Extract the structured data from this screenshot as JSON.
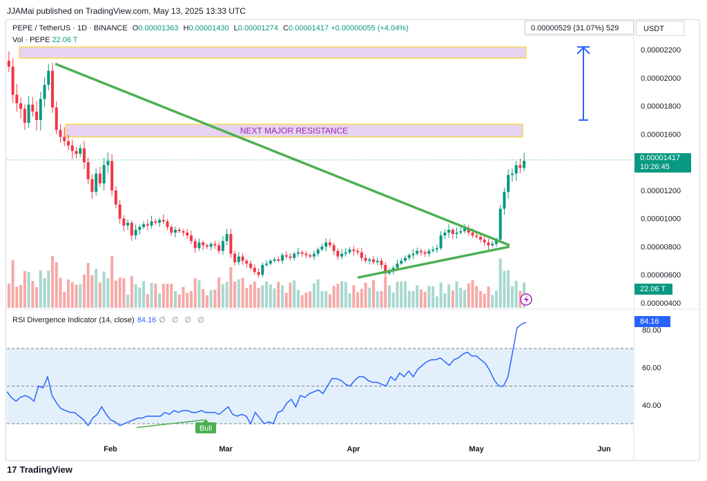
{
  "published_by": "JJAMai published on TradingView.com, May 13, 2025 13:33 UTC",
  "symbol": {
    "title": "PEPE / TetherUS · 1D · BINANCE",
    "ohlc": {
      "o_label": "O",
      "o": "0.00001363",
      "h_label": "H",
      "h": "0.00001430",
      "l_label": "L",
      "l": "0.00001274",
      "c_label": "C",
      "c": "0.00001417",
      "change": "+0.00000055 (+4.04%)"
    },
    "vol_label": "Vol · PEPE",
    "vol_value": "22.06 T",
    "currency": "USDT",
    "last_price": "0.00001417",
    "countdown": "10:26:45",
    "vol_tag": "22.06 T"
  },
  "measure_box": "0.00000529 (31.07%) 529",
  "annotations": {
    "resistance_label": "NEXT MAJOR RESISTANCE",
    "bull_label": "Bull"
  },
  "rsi": {
    "label": "RSI Divergence Indicator (14, close)",
    "value": "84.16",
    "tag": "84.16",
    "icons": "∅ ∅ ∅ ∅"
  },
  "footer": {
    "brand": "TradingView",
    "logo_glyph": "17"
  },
  "colors": {
    "up": "#089981",
    "down": "#f23645",
    "vol_up": "#a7d8cf",
    "vol_down": "#f7a9a7",
    "trendline": "#4caf50",
    "zone_fill": "#e7d3f1",
    "zone_border": "#f5d94e",
    "zone_text": "#9c27b0",
    "rsi_line": "#2962ff",
    "rsi_band": "#e3f0fb",
    "arrow": "#2962ff"
  },
  "chart_data": {
    "type": "candlestick",
    "price_axis": {
      "ticks": [
        4e-06,
        6e-06,
        8e-06,
        1e-05,
        1.2e-05,
        1.6e-05,
        1.8e-05,
        2e-05,
        2.2e-05
      ],
      "tick_labels": [
        "0.00000400",
        "0.00000600",
        "0.00000800",
        "0.00001000",
        "0.00001200",
        "0.00001600",
        "0.00001800",
        "0.00002000",
        "0.00002200"
      ]
    },
    "time_axis": {
      "labels": [
        "Feb",
        "Mar",
        "Apr",
        "May",
        "Jun"
      ]
    },
    "rsi_axis": {
      "ticks": [
        40,
        60,
        80
      ],
      "tick_labels": [
        "40.00",
        "60.00",
        "80.00"
      ],
      "band": [
        30,
        70
      ],
      "midline": 50
    },
    "candle_closes_approx": [
      2.08e-05,
      1.88e-05,
      1.82e-05,
      1.78e-05,
      1.68e-05,
      1.81e-05,
      1.76e-05,
      1.7e-05,
      1.85e-05,
      1.95e-05,
      2.05e-05,
      1.79e-05,
      1.63e-05,
      1.58e-05,
      1.55e-05,
      1.52e-05,
      1.48e-05,
      1.46e-05,
      1.5e-05,
      1.4e-05,
      1.28e-05,
      1.19e-05,
      1.32e-05,
      1.25e-05,
      1.38e-05,
      1.41e-05,
      1.2e-05,
      1.1e-05,
      1e-05,
      9.5e-06,
      9.7e-06,
      8.8e-06,
      9.2e-06,
      9.4e-06,
      9.6e-06,
      9.5e-06,
      9.8e-06,
      9.7e-06,
      9.9e-06,
      9.8e-06,
      9.4e-06,
      9e-06,
      9.2e-06,
      9.1e-06,
      9e-06,
      8.8e-06,
      8.4e-06,
      7.9e-06,
      8.3e-06,
      8.1e-06,
      8e-06,
      8.2e-06,
      8.1e-06,
      7.7e-06,
      8.4e-06,
      8.9e-06,
      7.5e-06,
      6.9e-06,
      7.3e-06,
      7e-06,
      6.8e-06,
      6.5e-06,
      6.2e-06,
      6e-06,
      6.7e-06,
      6.8e-06,
      7e-06,
      7.1e-06,
      7e-06,
      7.4e-06,
      7.3e-06,
      7.2e-06,
      7.5e-06,
      7.6e-06,
      7.5e-06,
      7.4e-06,
      7.3e-06,
      7.5e-06,
      7.8e-06,
      8e-06,
      8.3e-06,
      8.1e-06,
      7.7e-06,
      7.3e-06,
      7.5e-06,
      7.6e-06,
      7.8e-06,
      7.7e-06,
      7.6e-06,
      7.2e-06,
      7e-06,
      7.1e-06,
      6.9e-06,
      7e-06,
      6.7e-06,
      6.1e-06,
      6.3e-06,
      6.5e-06,
      6.8e-06,
      7e-06,
      7.2e-06,
      7.4e-06,
      7.5e-06,
      7.7e-06,
      7.6e-06,
      7.5e-06,
      7.7e-06,
      7.8e-06,
      7.9e-06,
      8.8e-06,
      9e-06,
      9.2e-06,
      8.9e-06,
      9e-06,
      9.1e-06,
      9.3e-06,
      9e-06,
      8.8e-06,
      8.7e-06,
      8.5e-06,
      8.3e-06,
      8.1e-06,
      8.2e-06,
      8.5e-06,
      1.07e-05,
      1.19e-05,
      1.31e-05,
      1.32e-05,
      1.38e-05,
      1.36e-05,
      1.41e-05
    ],
    "resistance_zones": [
      {
        "label": "",
        "low": 2.14e-05,
        "high": 2.22e-05
      },
      {
        "label": "NEXT MAJOR RESISTANCE",
        "low": 1.58e-05,
        "high": 1.67e-05
      }
    ],
    "trendlines": [
      {
        "from": [
          2.1e-05,
          "Jan 17"
        ],
        "to": [
          8.1e-06,
          "May 9"
        ]
      },
      {
        "from": [
          5.8e-06,
          "Apr 1"
        ],
        "to": [
          8e-06,
          "May 9"
        ]
      }
    ],
    "projection_arrow": {
      "from": 1.7e-05,
      "to": 2.22e-05
    },
    "rsi_values_approx": [
      47,
      44,
      42,
      44,
      45,
      44,
      42,
      50,
      49,
      55,
      45,
      41,
      38,
      37,
      36,
      36,
      34,
      32,
      29,
      33,
      35,
      39,
      35,
      32,
      31,
      29,
      30,
      31,
      32,
      33,
      33,
      34,
      34,
      34,
      34,
      36,
      35,
      37,
      36,
      37,
      37,
      36,
      36,
      37,
      36,
      36,
      36,
      35,
      37,
      39,
      35,
      34,
      35,
      34,
      30,
      36,
      33,
      30,
      31,
      30,
      36,
      37,
      41,
      43,
      39,
      45,
      44,
      46,
      47,
      48,
      46,
      50,
      54,
      54,
      53,
      51,
      50,
      53,
      55,
      55,
      53,
      52,
      52,
      51,
      50,
      55,
      53,
      57,
      55,
      58,
      55,
      59,
      61,
      63,
      64,
      64,
      65,
      63,
      61,
      64,
      65,
      67,
      68,
      66,
      66,
      64,
      62,
      58,
      53,
      50,
      50,
      55,
      68,
      81,
      83,
      84
    ]
  }
}
